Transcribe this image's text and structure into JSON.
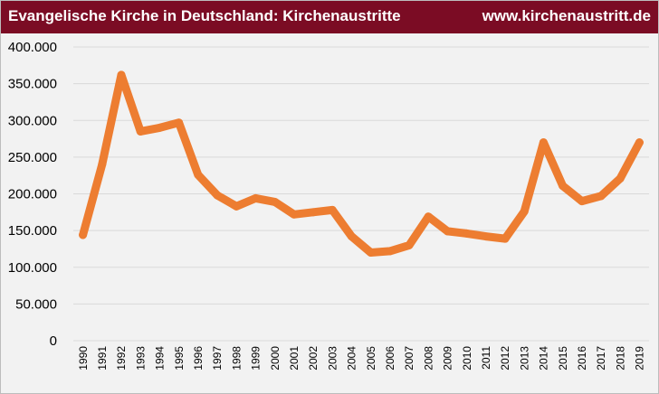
{
  "header": {
    "title": "Evangelische Kirche in Deutschland: Kirchenaustritte",
    "site": "www.kirchenaustritt.de"
  },
  "colors": {
    "header_bg": "#7b0c24",
    "line": "#ed7d31",
    "grid": "#d9d9d9",
    "plot_bg": "#f2f2f2"
  },
  "chart_data": {
    "type": "line",
    "title": "Evangelische Kirche in Deutschland: Kirchenaustritte",
    "xlabel": "",
    "ylabel": "",
    "ylim": [
      0,
      400000
    ],
    "ytick_values": [
      0,
      50000,
      100000,
      150000,
      200000,
      250000,
      300000,
      350000,
      400000
    ],
    "ytick_labels": [
      "0",
      "50.000",
      "100.000",
      "150.000",
      "200.000",
      "250.000",
      "300.000",
      "350.000",
      "400.000"
    ],
    "grid": true,
    "legend": "none",
    "x": [
      "1990",
      "1991",
      "1992",
      "1993",
      "1994",
      "1995",
      "1996",
      "1997",
      "1998",
      "1999",
      "2000",
      "2001",
      "2002",
      "2003",
      "2004",
      "2005",
      "2006",
      "2007",
      "2008",
      "2009",
      "2010",
      "2011",
      "2012",
      "2013",
      "2014",
      "2015",
      "2016",
      "2017",
      "2018",
      "2019"
    ],
    "series": [
      {
        "values": [
          144000,
          240000,
          362000,
          285000,
          290000,
          297000,
          226000,
          198000,
          183000,
          194000,
          189000,
          172000,
          175000,
          178000,
          142000,
          120000,
          122000,
          130000,
          169000,
          149000,
          146000,
          142000,
          139000,
          176000,
          270000,
          211000,
          190000,
          197000,
          221000,
          270000
        ]
      }
    ]
  }
}
